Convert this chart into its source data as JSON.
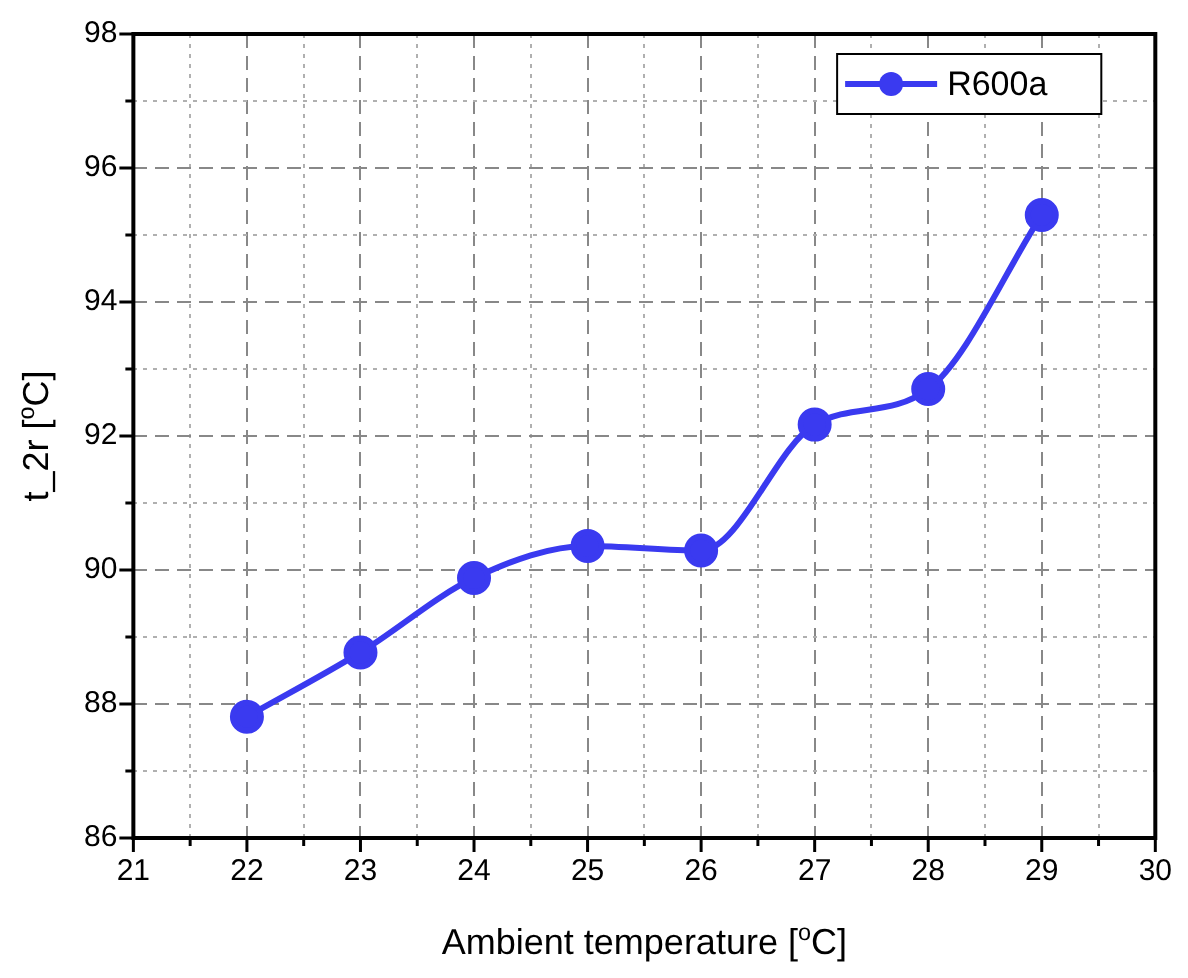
{
  "chart_data": {
    "type": "line",
    "xlabel": "Ambient temperature [$^{o}$C]",
    "ylabel": "t_2r [$^{o}$C]",
    "x": [
      22,
      23,
      24,
      25,
      26,
      27,
      28,
      29
    ],
    "series": [
      {
        "name": "R600a",
        "color": "#3a3af0",
        "values": [
          87.81,
          88.77,
          89.88,
          90.36,
          90.29,
          92.17,
          92.7,
          95.3
        ]
      }
    ],
    "xlim": [
      21,
      30
    ],
    "xticks": [
      21,
      {
        "value": 21.5,
        "label": null
      },
      22,
      {
        "value": 22.5,
        "label": null
      },
      23,
      {
        "value": 23.5,
        "label": null
      },
      24,
      {
        "value": 24.5,
        "label": null
      },
      25,
      {
        "value": 25.5,
        "label": null
      },
      26,
      {
        "value": 26.5,
        "label": null
      },
      27,
      {
        "value": 27.5,
        "label": null
      },
      28,
      {
        "value": 28.5,
        "label": null
      },
      29,
      {
        "value": 29.5,
        "label": null
      },
      30
    ],
    "ylim": [
      86,
      98
    ],
    "yticks": [
      86,
      {
        "value": 87,
        "label": null
      },
      88,
      {
        "value": 89,
        "label": null
      },
      90,
      {
        "value": 91,
        "label": null
      },
      92,
      {
        "value": 93,
        "label": null
      },
      94,
      {
        "value": 95,
        "label": null
      },
      96,
      {
        "value": 97,
        "label": null
      },
      98
    ],
    "grid": true,
    "legend": "top right",
    "marker": "circle",
    "line_style": "solid"
  }
}
